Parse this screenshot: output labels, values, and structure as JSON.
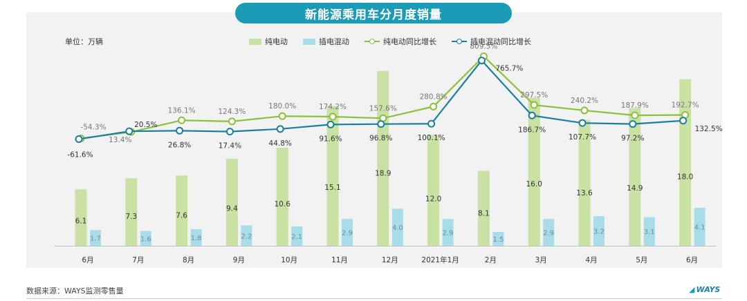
{
  "title": "新能源乘用车分月度销量",
  "unit_label": "单位：万辆",
  "source": "数据来源：WAYS监测零售量",
  "logo": "WAYS",
  "colors": {
    "bev_bar": "#c9e2a3",
    "phev_bar": "#a8dce8",
    "bev_line": "#8dbf3c",
    "phev_line": "#1a7f9e",
    "title_bg": "#1b9bb6"
  },
  "chart_data": {
    "type": "bar",
    "categories": [
      "6月",
      "7月",
      "8月",
      "9月",
      "10月",
      "11月",
      "12月",
      "2021年1月",
      "2月",
      "3月",
      "4月",
      "5月",
      "6月"
    ],
    "ylim": [
      0,
      20
    ],
    "grid": false,
    "legend_position": "top",
    "series": [
      {
        "name": "纯电动",
        "kind": "bar",
        "values": [
          6.1,
          7.3,
          7.6,
          9.4,
          10.6,
          15.1,
          18.9,
          12.0,
          8.1,
          16.0,
          13.6,
          14.9,
          18.0
        ],
        "labels": [
          "6.1",
          "7.3",
          "7.6",
          "9.4",
          "10.6",
          "15.1",
          "18.9",
          "12.0",
          "8.1",
          "16.0",
          "13.6",
          "14.9",
          "18.0"
        ]
      },
      {
        "name": "插电混动",
        "kind": "bar",
        "values": [
          1.7,
          1.6,
          1.8,
          2.2,
          2.1,
          2.9,
          4.0,
          2.9,
          1.5,
          2.9,
          3.2,
          3.1,
          4.1
        ],
        "labels": [
          "1.7",
          "1.6",
          "1.8",
          "2.2",
          "2.1",
          "2.9",
          "4.0",
          "2.9",
          "1.5",
          "2.9",
          "3.2",
          "3.1",
          "4.1"
        ]
      },
      {
        "name": "纯电动同比增长",
        "kind": "line",
        "values": [
          -54.3,
          13.4,
          136.1,
          124.3,
          180.0,
          174.2,
          157.6,
          280.8,
          809.5,
          297.5,
          240.2,
          187.9,
          192.7
        ],
        "labels": [
          "-54.3%",
          "13.4%",
          "136.1%",
          "124.3%",
          "180.0%",
          "174.2%",
          "157.6%",
          "280.8%",
          "809.5%",
          "297.5%",
          "240.2%",
          "187.9%",
          "192.7%"
        ]
      },
      {
        "name": "插电混动同比增长",
        "kind": "line",
        "values": [
          -61.6,
          20.5,
          26.8,
          17.4,
          44.8,
          91.6,
          96.8,
          100.1,
          765.7,
          186.7,
          107.7,
          97.2,
          132.5
        ],
        "labels": [
          "-61.6%",
          "20.5%",
          "26.8%",
          "17.4%",
          "44.8%",
          "91.6%",
          "96.8%",
          "100.1%",
          "765.7%",
          "186.7%",
          "107.7%",
          "97.2%",
          "132.5%"
        ]
      }
    ]
  }
}
